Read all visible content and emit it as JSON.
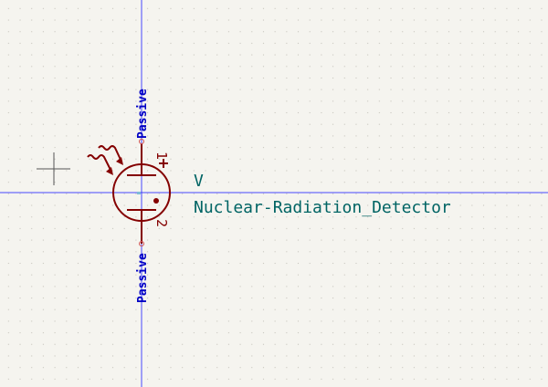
{
  "schematic": {
    "symbol": {
      "reference": "V",
      "value": "Nuclear-Radiation_Detector",
      "pins": [
        {
          "number": "1",
          "type": "Passive",
          "polarity": "+"
        },
        {
          "number": "2",
          "type": "Passive"
        }
      ]
    },
    "colors": {
      "background": "#f5f4ef",
      "grid_dot": "#c8c6be",
      "body": "#840000",
      "pin_type_text": "#0000c4",
      "field_text": "#006464",
      "axis_line": "#2929ff",
      "pin_end": "#d05050",
      "cursor": "#555555"
    }
  }
}
